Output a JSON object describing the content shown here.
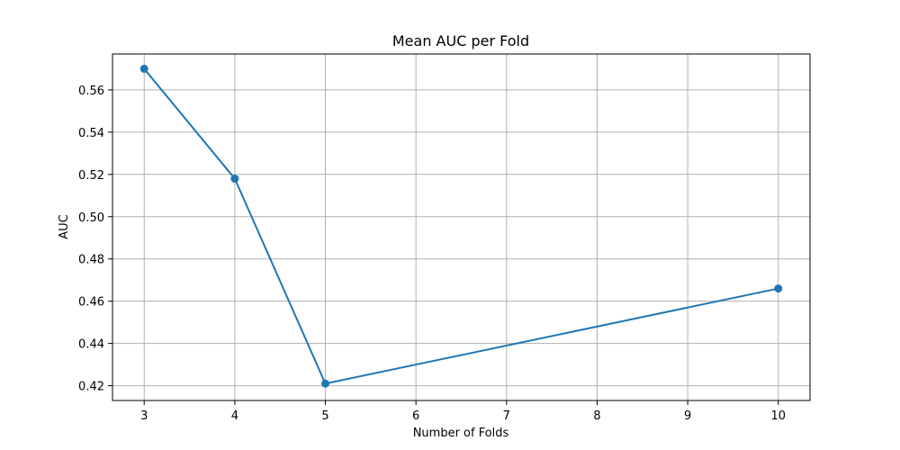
{
  "chart_data": {
    "type": "line",
    "title": "Mean AUC per Fold",
    "xlabel": "Number of Folds",
    "ylabel": "AUC",
    "xlim": [
      2.65,
      10.35
    ],
    "ylim": [
      0.413,
      0.577
    ],
    "xticks": [
      3,
      4,
      5,
      6,
      7,
      8,
      9,
      10
    ],
    "xtick_labels": [
      "3",
      "4",
      "5",
      "6",
      "7",
      "8",
      "9",
      "10"
    ],
    "yticks": [
      0.42,
      0.44,
      0.46,
      0.48,
      0.5,
      0.52,
      0.54,
      0.56
    ],
    "ytick_labels": [
      "0.42",
      "0.44",
      "0.46",
      "0.48",
      "0.50",
      "0.52",
      "0.54",
      "0.56"
    ],
    "grid": true,
    "series": [
      {
        "color": "#1f77b4",
        "marker": "circle",
        "x": [
          3,
          4,
          5,
          10
        ],
        "y": [
          0.57,
          0.518,
          0.421,
          0.466
        ]
      }
    ]
  }
}
